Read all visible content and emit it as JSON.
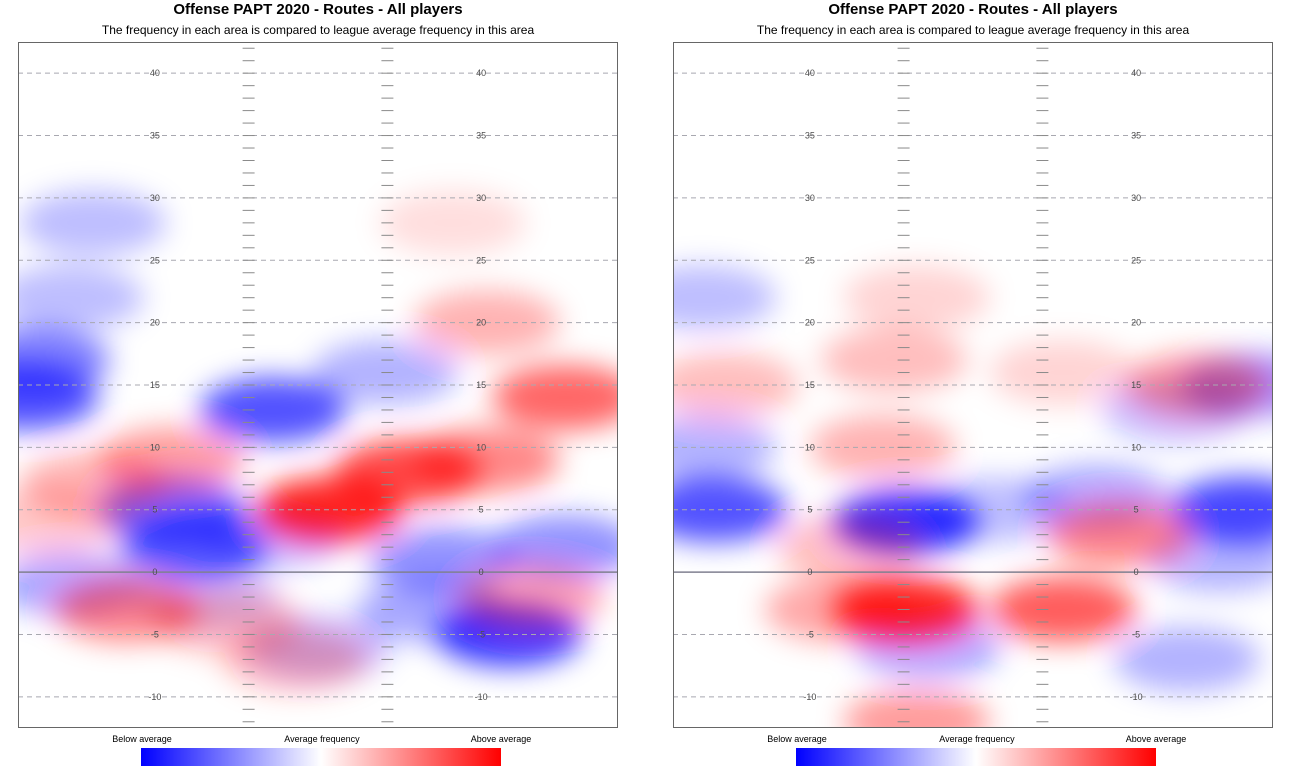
{
  "charts": [
    {
      "title": "Offense PAPT 2020 - Routes - All players",
      "subtitle": "The frequency in each area is compared to league average frequency in this area"
    },
    {
      "title": "Offense PAPT 2020 - Routes - All players",
      "subtitle": "The frequency in each area is compared to league average frequency in this area"
    }
  ],
  "legend": {
    "low": "Below average",
    "mid": "Average frequency",
    "high": "Above average",
    "colors": {
      "low": "#0000ff",
      "mid": "#ffffff",
      "high": "#ff0000"
    }
  },
  "chart_data": [
    {
      "type": "heatmap",
      "title": "Offense PAPT 2020 - Routes - All players",
      "subtitle": "The frequency in each area is compared to league average frequency in this area",
      "xlim": [
        -26.67,
        26.67
      ],
      "ylim": [
        -12.5,
        42.5
      ],
      "yticks": [
        -10,
        -5,
        0,
        5,
        10,
        15,
        20,
        25,
        30,
        35,
        40
      ],
      "line_of_scrimmage": 0,
      "grid": true,
      "legend_position": "bottom",
      "color_scale": {
        "low": "#0000ff",
        "mid": "#ffffff",
        "high": "#ff0000",
        "range": [
          -1,
          1
        ]
      },
      "hotspots": [
        {
          "x": -26,
          "y": 14,
          "value": -0.8
        },
        {
          "x": -25,
          "y": 17,
          "value": -0.6
        },
        {
          "x": -20,
          "y": 28,
          "value": -0.3
        },
        {
          "x": -22,
          "y": 22,
          "value": -0.3
        },
        {
          "x": -4,
          "y": 13,
          "value": -0.8
        },
        {
          "x": 6,
          "y": 16,
          "value": -0.35
        },
        {
          "x": -13,
          "y": 5,
          "value": -0.7
        },
        {
          "x": -11,
          "y": 2,
          "value": -0.75
        },
        {
          "x": -4,
          "y": 3,
          "value": -0.35
        },
        {
          "x": 11,
          "y": 1,
          "value": -0.5
        },
        {
          "x": 22,
          "y": 2,
          "value": -0.5
        },
        {
          "x": 17,
          "y": -5,
          "value": -0.9
        },
        {
          "x": 10,
          "y": -3,
          "value": -0.4
        },
        {
          "x": -22,
          "y": -1,
          "value": -0.4
        },
        {
          "x": -10,
          "y": -2,
          "value": -0.25
        },
        {
          "x": 0,
          "y": -6,
          "value": -0.3
        },
        {
          "x": -13,
          "y": 9,
          "value": 0.45
        },
        {
          "x": -20,
          "y": 7,
          "value": 0.35
        },
        {
          "x": 1,
          "y": 5,
          "value": 1.0
        },
        {
          "x": 8,
          "y": 8,
          "value": 0.85
        },
        {
          "x": 15,
          "y": 9,
          "value": 0.55
        },
        {
          "x": 22,
          "y": 14,
          "value": 0.7
        },
        {
          "x": 15,
          "y": 20,
          "value": 0.35
        },
        {
          "x": 12,
          "y": 28,
          "value": 0.15
        },
        {
          "x": -17,
          "y": -3,
          "value": 0.55
        },
        {
          "x": -8,
          "y": -4,
          "value": 0.3
        },
        {
          "x": -2,
          "y": -7,
          "value": 0.3
        },
        {
          "x": -24,
          "y": 4,
          "value": 0.25
        },
        {
          "x": 19,
          "y": -2,
          "value": 0.4
        }
      ]
    },
    {
      "type": "heatmap",
      "title": "Offense PAPT 2020 - Routes - All players",
      "subtitle": "The frequency in each area is compared to league average frequency in this area",
      "xlim": [
        -26.67,
        26.67
      ],
      "ylim": [
        -12.5,
        42.5
      ],
      "yticks": [
        -10,
        -5,
        0,
        5,
        10,
        15,
        20,
        25,
        30,
        35,
        40
      ],
      "line_of_scrimmage": 0,
      "grid": true,
      "legend_position": "bottom",
      "color_scale": {
        "low": "#0000ff",
        "mid": "#ffffff",
        "high": "#ff0000",
        "range": [
          -1,
          1
        ]
      },
      "hotspots": [
        {
          "x": -24,
          "y": 22,
          "value": -0.3
        },
        {
          "x": -24,
          "y": 10,
          "value": -0.35
        },
        {
          "x": -23,
          "y": 5,
          "value": -0.8
        },
        {
          "x": -6,
          "y": 4,
          "value": -0.95
        },
        {
          "x": 2,
          "y": 5,
          "value": -0.3
        },
        {
          "x": 11,
          "y": 6,
          "value": -0.4
        },
        {
          "x": 24,
          "y": 5,
          "value": -0.85
        },
        {
          "x": 25,
          "y": 15,
          "value": -0.5
        },
        {
          "x": 18,
          "y": 13,
          "value": -0.3
        },
        {
          "x": 22,
          "y": 1,
          "value": -0.35
        },
        {
          "x": -4,
          "y": -6,
          "value": -0.4
        },
        {
          "x": 19,
          "y": -7,
          "value": -0.35
        },
        {
          "x": -8,
          "y": 10,
          "value": 0.35
        },
        {
          "x": -7,
          "y": 17,
          "value": 0.3
        },
        {
          "x": -5,
          "y": 22,
          "value": 0.2
        },
        {
          "x": 8,
          "y": 16,
          "value": 0.2
        },
        {
          "x": -22,
          "y": 15,
          "value": 0.3
        },
        {
          "x": 20,
          "y": 15,
          "value": 0.45
        },
        {
          "x": 13,
          "y": 3,
          "value": 0.55
        },
        {
          "x": -6,
          "y": -3,
          "value": 1.0
        },
        {
          "x": -12,
          "y": -3,
          "value": 0.4
        },
        {
          "x": 8,
          "y": -3,
          "value": 0.75
        },
        {
          "x": -11,
          "y": 2,
          "value": 0.3
        },
        {
          "x": -5,
          "y": -12,
          "value": 0.45
        }
      ]
    }
  ]
}
